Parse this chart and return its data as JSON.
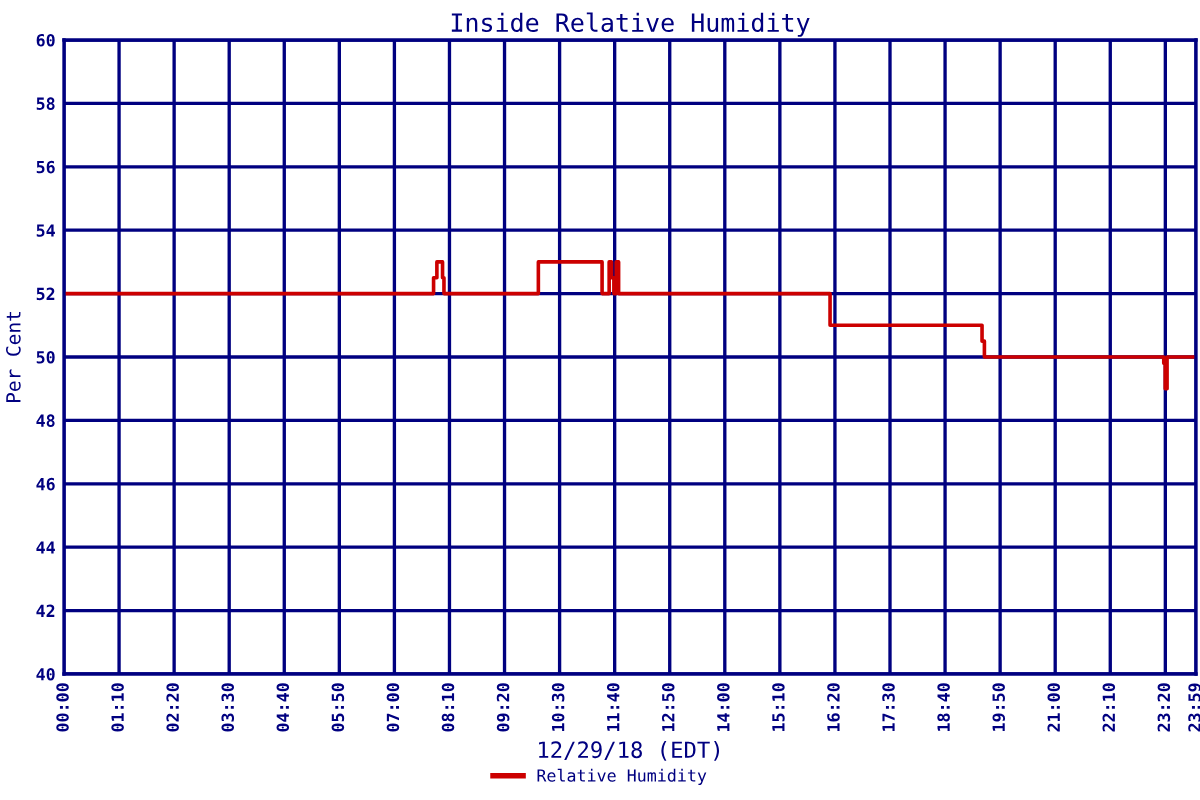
{
  "chart_data": {
    "type": "step",
    "title": "Inside Relative Humidity",
    "xlabel": "12/29/18 (EDT)",
    "ylabel": "Per Cent",
    "xlim": [
      0,
      23.983
    ],
    "ylim": [
      40,
      60
    ],
    "xticks": [
      {
        "value": 0,
        "label": "00:00"
      },
      {
        "value": 1.1667,
        "label": "01:10"
      },
      {
        "value": 2.3333,
        "label": "02:20"
      },
      {
        "value": 3.5,
        "label": "03:30"
      },
      {
        "value": 4.6667,
        "label": "04:40"
      },
      {
        "value": 5.8333,
        "label": "05:50"
      },
      {
        "value": 7,
        "label": "07:00"
      },
      {
        "value": 8.1667,
        "label": "08:10"
      },
      {
        "value": 9.3333,
        "label": "09:20"
      },
      {
        "value": 10.5,
        "label": "10:30"
      },
      {
        "value": 11.6667,
        "label": "11:40"
      },
      {
        "value": 12.8333,
        "label": "12:50"
      },
      {
        "value": 14,
        "label": "14:00"
      },
      {
        "value": 15.1667,
        "label": "15:10"
      },
      {
        "value": 16.3333,
        "label": "16:20"
      },
      {
        "value": 17.5,
        "label": "17:30"
      },
      {
        "value": 18.6667,
        "label": "18:40"
      },
      {
        "value": 19.8333,
        "label": "19:50"
      },
      {
        "value": 21,
        "label": "21:00"
      },
      {
        "value": 22.1667,
        "label": "22:10"
      },
      {
        "value": 23.3333,
        "label": "23:20"
      },
      {
        "value": 23.983,
        "label": "23:59"
      }
    ],
    "yticks": [
      40,
      42,
      44,
      46,
      48,
      50,
      52,
      54,
      56,
      58,
      60
    ],
    "grid": true,
    "legend": "bottom",
    "series": [
      {
        "name": "Relative Humidity",
        "color": "#cc0000",
        "x": [
          0,
          7.83,
          7.9,
          8.02,
          8.05,
          10.05,
          11.4,
          11.55,
          11.6,
          11.65,
          11.7,
          11.75,
          16.23,
          19.45,
          19.5,
          23.3,
          23.33,
          23.37,
          23.983
        ],
        "values": [
          52,
          52.5,
          53,
          52.5,
          52,
          53,
          52,
          53,
          52.5,
          52,
          53,
          52,
          51,
          50.5,
          50,
          49.8,
          49,
          50,
          50
        ]
      }
    ]
  }
}
